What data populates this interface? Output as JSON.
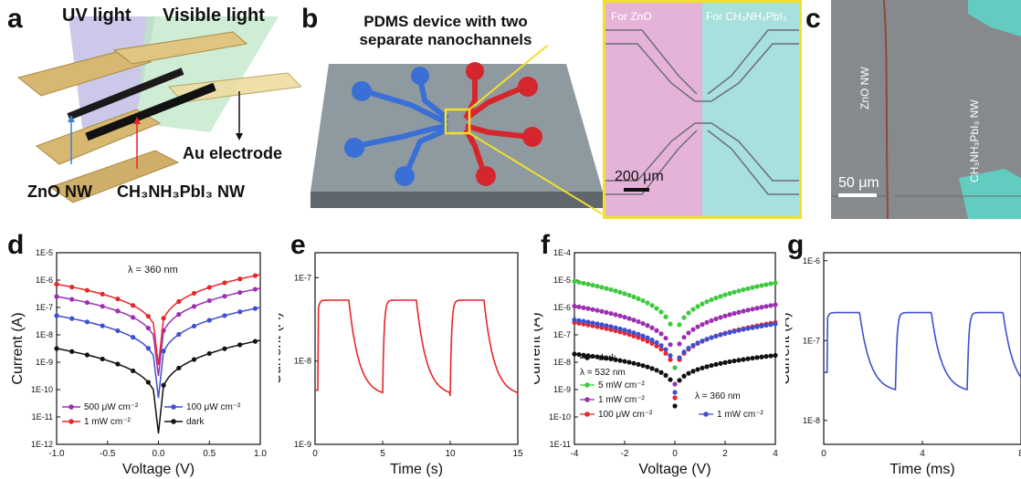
{
  "panels": {
    "a": {
      "letter": "a",
      "uv_label": "UV light",
      "visible_label": "Visible light",
      "electrode_label": "Au electrode",
      "zno_label": "ZnO NW",
      "mapbi_label": "CH₃NH₃PbI₃ NW"
    },
    "b": {
      "letter": "b",
      "title_line1": "PDMS device with two",
      "title_line2": "separate nanochannels",
      "zno_region_label": "For ZnO",
      "mapbi_region_label": "For CH₃NH₃PbI₃",
      "scale_bar": "200 μm"
    },
    "c": {
      "letter": "c",
      "zno_label": "ZnO NW",
      "mapbi_label": "CH₃NH₃PbI₃ NW",
      "scale_bar": "50 μm"
    },
    "d": {
      "letter": "d"
    },
    "e": {
      "letter": "e"
    },
    "f": {
      "letter": "f"
    },
    "g": {
      "letter": "g"
    }
  },
  "colors": {
    "red": "#e8262a",
    "purple": "#9b2fb0",
    "blue": "#3f4fcf",
    "black": "#111111",
    "green": "#3ec93e",
    "pink_region": "#e6b3d8",
    "cyan_region": "#a7e0dc",
    "yellow_frame": "#f2e02a"
  },
  "chart_data": [
    {
      "id": "d",
      "type": "line",
      "title": "λ = 360 nm",
      "xlabel": "Voltage (V)",
      "ylabel": "Current (A)",
      "xlim": [
        -1.0,
        1.0
      ],
      "ylim_log10": [
        -12,
        -5
      ],
      "log_y": true,
      "xticks": [
        "-1.0",
        "-0.5",
        "0.0",
        "0.5",
        "1.0"
      ],
      "yticks": [
        "1E-12",
        "1E-11",
        "1E-10",
        "1E-9",
        "1E-8",
        "1E-7",
        "1E-6",
        "1E-5"
      ],
      "legend_position": "bottom",
      "series": [
        {
          "name": "500 μW cm⁻²",
          "color": "#9b2fb0",
          "left_log": -6.6,
          "right_log": -6.3,
          "min_log": -9.5
        },
        {
          "name": "100 μW cm⁻²",
          "color": "#3f4fcf",
          "left_log": -7.3,
          "right_log": -7.0,
          "min_log": -10.3
        },
        {
          "name": "1 mW cm⁻²",
          "color": "#e8262a",
          "left_log": -6.15,
          "right_log": -5.8,
          "min_log": -9.1
        },
        {
          "name": "dark",
          "color": "#111111",
          "left_log": -8.5,
          "right_log": -8.2,
          "min_log": -11.6
        }
      ]
    },
    {
      "id": "e",
      "type": "line",
      "xlabel": "Time (s)",
      "ylabel": "Current (A)",
      "xlim": [
        0,
        15
      ],
      "ylim_log10": [
        -9,
        -6.7
      ],
      "log_y": true,
      "xticks": [
        "0",
        "5",
        "10",
        "15"
      ],
      "yticks": [
        "1E-9",
        "1E-8",
        "1E-7"
      ],
      "color": "#e8262a",
      "high_log": -7.27,
      "low_log": -8.42,
      "period": 5,
      "on_duration": 2.5,
      "start_log": -8.35
    },
    {
      "id": "f",
      "type": "scatter",
      "xlabel": "Voltage (V)",
      "ylabel": "Current (A)",
      "xlim": [
        -4,
        4
      ],
      "ylim_log10": [
        -11,
        -4
      ],
      "log_y": true,
      "xticks": [
        "-4",
        "-2",
        "0",
        "2",
        "4"
      ],
      "yticks": [
        "1E-11",
        "1E-10",
        "1E-9",
        "1E-8",
        "1E-7",
        "1E-6",
        "1E-5",
        "1E-4"
      ],
      "legend_position": "bottom-left",
      "annotation_532": "λ = 532 nm",
      "annotation_360": "λ = 360 nm",
      "series": [
        {
          "name": "dark",
          "color": "#111111",
          "left_log": -7.7,
          "right_log": -7.75,
          "min_log": -9.6
        },
        {
          "name": "5 mW cm⁻²",
          "color": "#3ec93e",
          "left_log": -5.05,
          "right_log": -5.1,
          "min_log": -8.2
        },
        {
          "name": "1 mW cm⁻²",
          "color": "#9b2fb0",
          "left_log": -5.95,
          "right_log": -5.9,
          "min_log": -8.8
        },
        {
          "name": "100 μW cm⁻²",
          "color": "#e8262a",
          "left_log": -6.55,
          "right_log": -6.55,
          "min_log": -9.3
        },
        {
          "name": "1 mW cm⁻²",
          "color": "#3f4fcf",
          "left_log": -6.45,
          "right_log": -6.6,
          "min_log": -9.1
        }
      ]
    },
    {
      "id": "g",
      "type": "line",
      "xlabel": "Time (ms)",
      "ylabel": "Current (A)",
      "xlim": [
        0,
        11
      ],
      "ylim_log10": [
        -8.3,
        -5.9
      ],
      "log_y": true,
      "xticks": [
        "0",
        "4",
        "8"
      ],
      "yticks": [
        "1E-8",
        "1E-7",
        "1E-6"
      ],
      "color": "#3f4fcf",
      "high_log": -6.65,
      "low_log": -7.65,
      "period": 4,
      "on_duration": 2,
      "start_log": -7.4
    }
  ]
}
